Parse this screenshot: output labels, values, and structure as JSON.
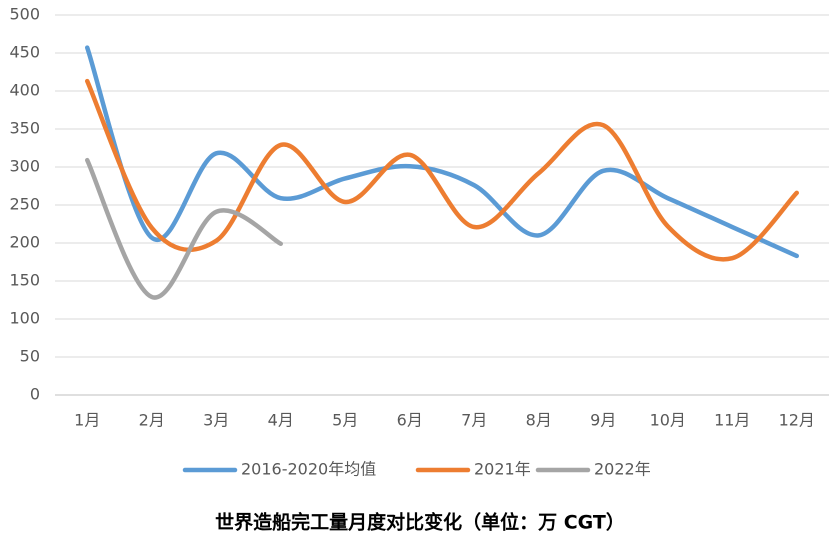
{
  "chart_data": {
    "type": "line",
    "title": "世界造船完工量月度对比变化（单位：万 CGT）",
    "categories": [
      "1月",
      "2月",
      "3月",
      "4月",
      "5月",
      "6月",
      "7月",
      "8月",
      "9月",
      "10月",
      "11月",
      "12月"
    ],
    "series": [
      {
        "name": "2016-2020年均值",
        "color": "#5b9bd5",
        "values": [
          457,
          207,
          318,
          259,
          285,
          301,
          276,
          210,
          295,
          259,
          221,
          183
        ]
      },
      {
        "name": "2021年",
        "color": "#ed7d31",
        "values": [
          413,
          220,
          203,
          329,
          254,
          316,
          221,
          292,
          355,
          222,
          180,
          266
        ]
      },
      {
        "name": "2022年",
        "color": "#a5a5a5",
        "values": [
          309,
          129,
          241,
          199,
          null,
          null,
          null,
          null,
          null,
          null,
          null,
          null
        ]
      }
    ],
    "ylim": [
      0,
      500
    ],
    "yticks": [
      0,
      50,
      100,
      150,
      200,
      250,
      300,
      350,
      400,
      450,
      500
    ],
    "grid": true,
    "smooth": true,
    "legend": "bottom"
  }
}
